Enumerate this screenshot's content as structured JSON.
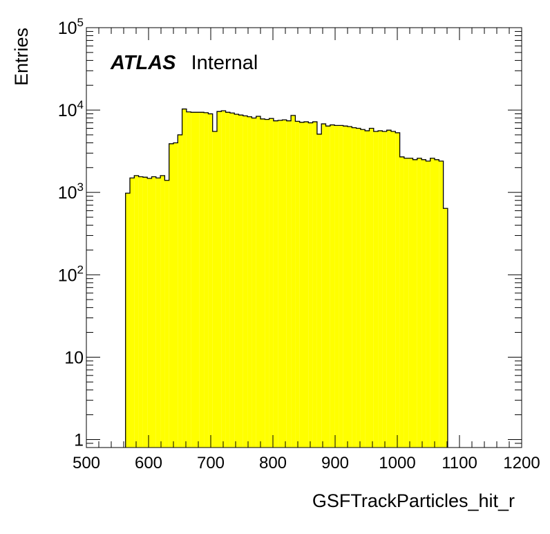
{
  "chart_data": {
    "type": "bar",
    "title": "",
    "xlabel": "GSFTrackParticles_hit_r",
    "ylabel": "Entries",
    "xlim": [
      500,
      1200
    ],
    "ylim": [
      0.8,
      100000
    ],
    "yscale": "log",
    "grid": false,
    "fill_color": "#ffff00",
    "line_color": "#000000",
    "x_ticks": [
      {
        "value": 500,
        "label": "500"
      },
      {
        "value": 600,
        "label": "600"
      },
      {
        "value": 700,
        "label": "700"
      },
      {
        "value": 800,
        "label": "800"
      },
      {
        "value": 900,
        "label": "900"
      },
      {
        "value": 1000,
        "label": "1000"
      },
      {
        "value": 1100,
        "label": "1100"
      },
      {
        "value": 1200,
        "label": "1200"
      }
    ],
    "y_ticks": [
      {
        "value": 1,
        "base": "1",
        "exp": ""
      },
      {
        "value": 10,
        "base": "10",
        "exp": ""
      },
      {
        "value": 100,
        "base": "10",
        "exp": "2"
      },
      {
        "value": 1000,
        "base": "10",
        "exp": "3"
      },
      {
        "value": 10000,
        "base": "10",
        "exp": "4"
      },
      {
        "value": 100000,
        "base": "10",
        "exp": "5"
      }
    ],
    "annotation": {
      "bold": "ATLAS",
      "normal": "Internal"
    },
    "bin_width": 7,
    "bins": [
      {
        "x": 563,
        "y": 980
      },
      {
        "x": 570,
        "y": 1500
      },
      {
        "x": 577,
        "y": 1600
      },
      {
        "x": 584,
        "y": 1550
      },
      {
        "x": 591,
        "y": 1530
      },
      {
        "x": 598,
        "y": 1480
      },
      {
        "x": 605,
        "y": 1550
      },
      {
        "x": 612,
        "y": 1500
      },
      {
        "x": 619,
        "y": 1600
      },
      {
        "x": 626,
        "y": 1400
      },
      {
        "x": 633,
        "y": 3900
      },
      {
        "x": 640,
        "y": 4000
      },
      {
        "x": 647,
        "y": 5000
      },
      {
        "x": 654,
        "y": 10300
      },
      {
        "x": 661,
        "y": 9500
      },
      {
        "x": 668,
        "y": 9400
      },
      {
        "x": 675,
        "y": 9400
      },
      {
        "x": 682,
        "y": 9400
      },
      {
        "x": 689,
        "y": 9300
      },
      {
        "x": 696,
        "y": 9000
      },
      {
        "x": 703,
        "y": 5500
      },
      {
        "x": 710,
        "y": 9600
      },
      {
        "x": 717,
        "y": 9800
      },
      {
        "x": 724,
        "y": 9400
      },
      {
        "x": 731,
        "y": 9200
      },
      {
        "x": 738,
        "y": 8900
      },
      {
        "x": 745,
        "y": 8700
      },
      {
        "x": 752,
        "y": 8500
      },
      {
        "x": 759,
        "y": 8300
      },
      {
        "x": 766,
        "y": 8000
      },
      {
        "x": 773,
        "y": 8400
      },
      {
        "x": 780,
        "y": 7800
      },
      {
        "x": 787,
        "y": 7700
      },
      {
        "x": 794,
        "y": 7900
      },
      {
        "x": 801,
        "y": 7400
      },
      {
        "x": 808,
        "y": 7500
      },
      {
        "x": 815,
        "y": 7600
      },
      {
        "x": 822,
        "y": 7400
      },
      {
        "x": 829,
        "y": 8600
      },
      {
        "x": 836,
        "y": 7300
      },
      {
        "x": 843,
        "y": 7100
      },
      {
        "x": 850,
        "y": 7200
      },
      {
        "x": 857,
        "y": 7000
      },
      {
        "x": 864,
        "y": 7200
      },
      {
        "x": 871,
        "y": 5100
      },
      {
        "x": 878,
        "y": 6800
      },
      {
        "x": 885,
        "y": 6400
      },
      {
        "x": 892,
        "y": 6600
      },
      {
        "x": 899,
        "y": 6500
      },
      {
        "x": 906,
        "y": 6500
      },
      {
        "x": 913,
        "y": 6400
      },
      {
        "x": 920,
        "y": 6300
      },
      {
        "x": 927,
        "y": 6100
      },
      {
        "x": 934,
        "y": 6000
      },
      {
        "x": 941,
        "y": 5800
      },
      {
        "x": 948,
        "y": 5600
      },
      {
        "x": 955,
        "y": 6000
      },
      {
        "x": 962,
        "y": 5500
      },
      {
        "x": 969,
        "y": 5600
      },
      {
        "x": 976,
        "y": 5500
      },
      {
        "x": 983,
        "y": 5700
      },
      {
        "x": 990,
        "y": 5500
      },
      {
        "x": 997,
        "y": 5300
      },
      {
        "x": 1004,
        "y": 2700
      },
      {
        "x": 1011,
        "y": 2600
      },
      {
        "x": 1018,
        "y": 2600
      },
      {
        "x": 1025,
        "y": 2500
      },
      {
        "x": 1032,
        "y": 2600
      },
      {
        "x": 1039,
        "y": 2500
      },
      {
        "x": 1046,
        "y": 2400
      },
      {
        "x": 1053,
        "y": 2600
      },
      {
        "x": 1060,
        "y": 2500
      },
      {
        "x": 1067,
        "y": 2400
      },
      {
        "x": 1074,
        "y": 640
      }
    ]
  }
}
